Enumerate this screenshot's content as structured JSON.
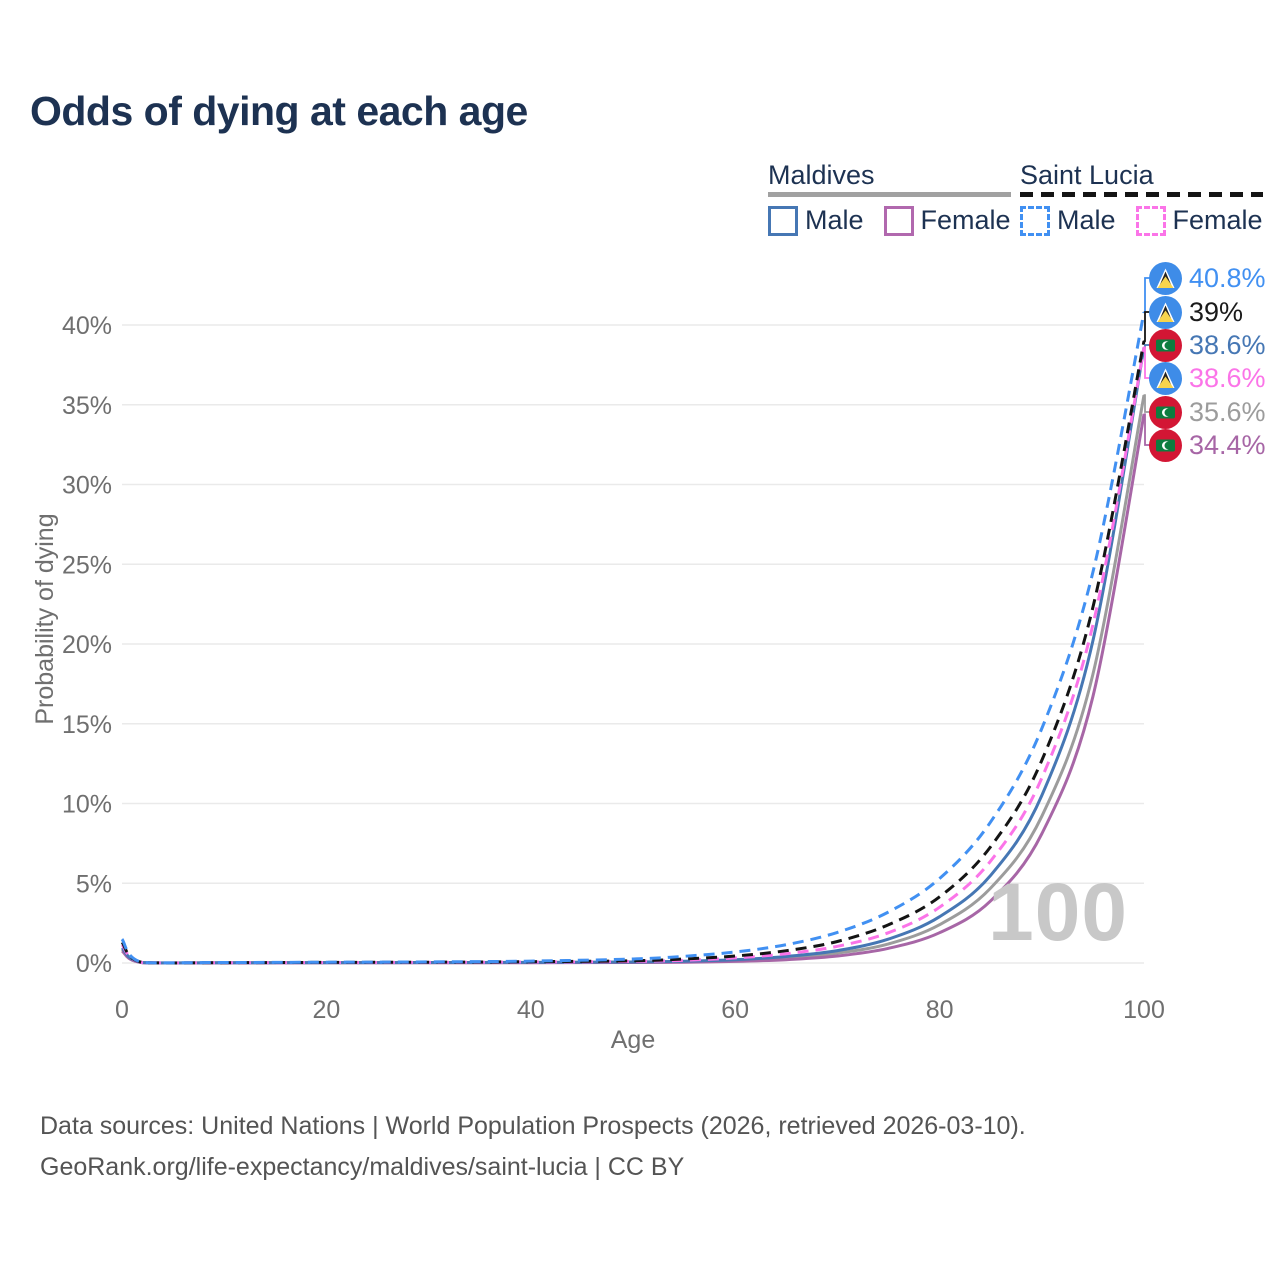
{
  "page": {
    "title": "Odds of dying at each age"
  },
  "legend": {
    "groups": [
      {
        "id": "maldives",
        "label": "Maldives",
        "line_style": "solid",
        "line_color": "#a1a1a1",
        "items": [
          {
            "id": "maldives_male",
            "label": "Male",
            "color": "#4677b4",
            "dashed": false
          },
          {
            "id": "maldives_female",
            "label": "Female",
            "color": "#b168ae",
            "dashed": false
          }
        ]
      },
      {
        "id": "saint_lucia",
        "label": "Saint Lucia",
        "line_style": "dashed",
        "line_color": "#141414",
        "items": [
          {
            "id": "saint_lucia_male",
            "label": "Male",
            "color": "#4190f2",
            "dashed": true
          },
          {
            "id": "saint_lucia_female",
            "label": "Female",
            "color": "#fb74e8",
            "dashed": true
          }
        ]
      }
    ]
  },
  "chart_data": {
    "type": "line",
    "title": "Odds of dying at each age",
    "xlabel": "Age",
    "ylabel": "Probability of dying",
    "xlim": [
      0,
      100
    ],
    "ylim": [
      0,
      42
    ],
    "xticks": [
      0,
      20,
      40,
      60,
      80,
      100
    ],
    "yticks": [
      0,
      5,
      10,
      15,
      20,
      25,
      30,
      35,
      40
    ],
    "ytick_suffix": "%",
    "grid": "horizontal-only",
    "legend_position": "top-right",
    "age_marker": "100",
    "x": [
      0,
      2,
      10,
      20,
      30,
      40,
      50,
      55,
      60,
      65,
      70,
      75,
      80,
      85,
      90,
      95,
      100
    ],
    "series": [
      {
        "id": "saint_lucia_male",
        "name": "Saint Lucia — Male",
        "color": "#4190f2",
        "dash": true,
        "flag": "saint-lucia",
        "end_label": "40.8%",
        "values": [
          1.5,
          0.04,
          0.03,
          0.05,
          0.07,
          0.12,
          0.25,
          0.42,
          0.69,
          1.15,
          1.92,
          3.2,
          5.3,
          8.85,
          14.7,
          24.5,
          40.8
        ]
      },
      {
        "id": "saint_lucia_both",
        "name": "Saint Lucia — Both sexes",
        "color": "#141414",
        "dash": true,
        "flag": "saint-lucia",
        "end_label": "39%",
        "values": [
          1.3,
          0.03,
          0.02,
          0.04,
          0.05,
          0.08,
          0.14,
          0.25,
          0.44,
          0.77,
          1.35,
          2.4,
          4.15,
          7.3,
          12.7,
          22.3,
          39
        ]
      },
      {
        "id": "maldives_male",
        "name": "Maldives — Male",
        "color": "#4677b4",
        "dash": false,
        "flag": "maldives",
        "end_label": "38.6%",
        "values": [
          0.95,
          0.03,
          0.015,
          0.025,
          0.03,
          0.04,
          0.06,
          0.11,
          0.21,
          0.41,
          0.78,
          1.5,
          2.9,
          5.5,
          10.5,
          20.2,
          38.6
        ]
      },
      {
        "id": "saint_lucia_female",
        "name": "Saint Lucia — Female",
        "color": "#fb74e8",
        "dash": true,
        "flag": "saint-lucia",
        "end_label": "38.6%",
        "values": [
          1.15,
          0.03,
          0.02,
          0.03,
          0.04,
          0.06,
          0.1,
          0.17,
          0.32,
          0.58,
          1.05,
          1.9,
          3.5,
          6.4,
          11.6,
          21.2,
          38.6
        ]
      },
      {
        "id": "maldives_both",
        "name": "Maldives — Both sexes",
        "color": "#9c9c9c",
        "dash": false,
        "flag": "maldives",
        "end_label": "35.6%",
        "values": [
          0.85,
          0.025,
          0.012,
          0.02,
          0.025,
          0.03,
          0.05,
          0.08,
          0.16,
          0.32,
          0.62,
          1.2,
          2.4,
          4.7,
          9.2,
          18.1,
          35.6
        ]
      },
      {
        "id": "maldives_female",
        "name": "Maldives — Female",
        "color": "#a766a6",
        "dash": false,
        "flag": "maldives",
        "end_label": "34.4%",
        "values": [
          0.75,
          0.02,
          0.008,
          0.012,
          0.015,
          0.02,
          0.03,
          0.05,
          0.1,
          0.21,
          0.44,
          0.92,
          1.9,
          3.9,
          8.1,
          16.7,
          34.4
        ]
      }
    ]
  },
  "footer": {
    "line1": "Data sources: United Nations | World Population Prospects (2026, retrieved 2026-03-10).",
    "line2": "GeoRank.org/life-expectancy/maldives/saint-lucia | CC BY"
  },
  "colors": {
    "title_text": "#1d3252",
    "axis_text": "#6f6f6f",
    "grid": "#eaeaea",
    "watermark": "#c8c8c8",
    "footer_text": "#545454"
  }
}
